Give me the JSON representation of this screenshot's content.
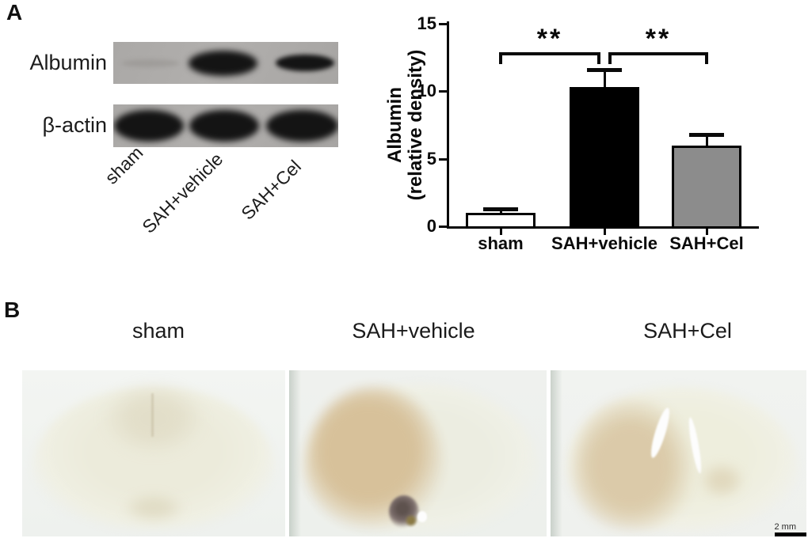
{
  "figure": {
    "panel_a": {
      "label": "A",
      "blot": {
        "row_labels": [
          "Albumin",
          "β-actin"
        ],
        "lane_labels": [
          "sham",
          "SAH+vehicle",
          "SAH+Cel"
        ]
      }
    },
    "panel_b": {
      "label": "B",
      "group_labels": [
        "sham",
        "SAH+vehicle",
        "SAH+Cel"
      ],
      "scale_bar_label": "2 mm",
      "stain_color": "#d6bf97"
    }
  },
  "chart_data": {
    "type": "bar",
    "title": "",
    "categories": [
      "sham",
      "SAH+vehicle",
      "SAH+Cel"
    ],
    "values": [
      1.0,
      10.3,
      6.0
    ],
    "errors": [
      0.3,
      1.3,
      0.8
    ],
    "bar_colors": [
      "#ffffff",
      "#000000",
      "#8c8c8c"
    ],
    "bar_border_color": "#000000",
    "ylabel": "Albumin (relative density)",
    "ylabel_line1": "Albumin",
    "ylabel_line2": "(relative density)",
    "xlabel": "",
    "yticks": [
      "0",
      "5",
      "10",
      "15"
    ],
    "ylim": [
      0,
      15
    ],
    "grid": false,
    "error_bars": true,
    "legend": null,
    "significance": [
      {
        "from": "sham",
        "to": "SAH+vehicle",
        "label": "**"
      },
      {
        "from": "SAH+vehicle",
        "to": "SAH+Cel",
        "label": "**"
      }
    ]
  }
}
